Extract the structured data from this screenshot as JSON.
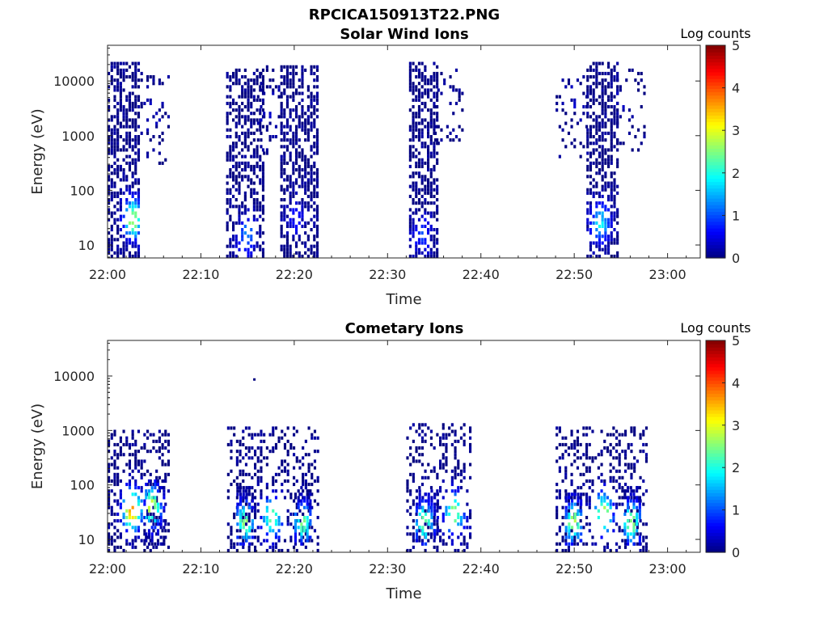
{
  "figure": {
    "title": "RPCICA150913T22.PNG"
  },
  "colormap": {
    "name": "jet"
  },
  "chart_data": [
    {
      "type": "heatmap",
      "title": "Solar Wind Ions",
      "xlabel": "Time",
      "ylabel": "Energy (eV)",
      "x_ticks": [
        "22:00",
        "22:10",
        "22:20",
        "22:30",
        "22:40",
        "22:50",
        "23:00"
      ],
      "xlim_minutes": [
        0,
        63.5
      ],
      "y_scale": "log",
      "ylim": [
        5.8,
        45000
      ],
      "y_ticks": [
        10,
        100,
        1000,
        10000
      ],
      "y_tick_labels": [
        "10",
        "100",
        "1000",
        "10000"
      ],
      "colorbar": {
        "label": "Log counts",
        "range": [
          0,
          5
        ],
        "ticks": [
          "0",
          "1",
          "2",
          "3",
          "4",
          "5"
        ]
      },
      "grid": false,
      "bursts": [
        {
          "t_start": 0.0,
          "t_end": 3.2,
          "e_min": 6,
          "e_max": 22000,
          "density": 0.55,
          "peak_t": 2.6,
          "peak_e": 30,
          "peak_level": 2.8
        },
        {
          "t_start": 3.2,
          "t_end": 6.5,
          "e_min": 250,
          "e_max": 15000,
          "density": 0.15,
          "peak_t": 4.5,
          "peak_e": 3000,
          "peak_level": 0.3
        },
        {
          "t_start": 12.7,
          "t_end": 16.6,
          "e_min": 6,
          "e_max": 18000,
          "density": 0.5,
          "peak_t": 14.8,
          "peak_e": 15,
          "peak_level": 1.3
        },
        {
          "t_start": 16.0,
          "t_end": 18.5,
          "e_min": 400,
          "e_max": 20000,
          "density": 0.2,
          "peak_t": 17.0,
          "peak_e": 3000,
          "peak_level": 0.3
        },
        {
          "t_start": 18.5,
          "t_end": 22.5,
          "e_min": 6,
          "e_max": 20000,
          "density": 0.55,
          "peak_t": 20.0,
          "peak_e": 30,
          "peak_level": 0.6
        },
        {
          "t_start": 32.3,
          "t_end": 35.3,
          "e_min": 6,
          "e_max": 22000,
          "density": 0.55,
          "peak_t": 33.6,
          "peak_e": 15,
          "peak_level": 0.9
        },
        {
          "t_start": 35.0,
          "t_end": 38.0,
          "e_min": 700,
          "e_max": 16000,
          "density": 0.18,
          "peak_t": 36.0,
          "peak_e": 5000,
          "peak_level": 0.3
        },
        {
          "t_start": 48.0,
          "t_end": 51.5,
          "e_min": 400,
          "e_max": 15000,
          "density": 0.15,
          "peak_t": 50.0,
          "peak_e": 5000,
          "peak_level": 0.3
        },
        {
          "t_start": 51.3,
          "t_end": 54.8,
          "e_min": 6,
          "e_max": 22000,
          "density": 0.55,
          "peak_t": 52.7,
          "peak_e": 25,
          "peak_level": 1.8
        },
        {
          "t_start": 54.5,
          "t_end": 57.5,
          "e_min": 500,
          "e_max": 16000,
          "density": 0.22,
          "peak_t": 55.0,
          "peak_e": 5000,
          "peak_level": 0.3
        }
      ]
    },
    {
      "type": "heatmap",
      "title": "Cometary Ions",
      "xlabel": "Time",
      "ylabel": "Energy (eV)",
      "x_ticks": [
        "22:00",
        "22:10",
        "22:20",
        "22:30",
        "22:40",
        "22:50",
        "23:00"
      ],
      "xlim_minutes": [
        0,
        63.5
      ],
      "y_scale": "log",
      "ylim": [
        5.8,
        45000
      ],
      "y_ticks": [
        10,
        100,
        1000,
        10000
      ],
      "y_tick_labels": [
        "10",
        "100",
        "1000",
        "10000"
      ],
      "colorbar": {
        "label": "Log counts",
        "range": [
          0,
          5
        ],
        "ticks": [
          "0",
          "1",
          "2",
          "3",
          "4",
          "5"
        ]
      },
      "grid": false,
      "bursts": [
        {
          "t_start": 0.0,
          "t_end": 6.5,
          "e_min": 6,
          "e_max": 1100,
          "density": 0.35,
          "peak_t": 2.5,
          "peak_e": 35,
          "peak_level": 3.8
        },
        {
          "t_start": 4.0,
          "t_end": 6.0,
          "e_min": 8,
          "e_max": 120,
          "density": 0.5,
          "peak_t": 4.6,
          "peak_e": 40,
          "peak_level": 3.0
        },
        {
          "t_start": 12.8,
          "t_end": 22.5,
          "e_min": 6,
          "e_max": 1200,
          "density": 0.3,
          "peak_t": 17.5,
          "peak_e": 25,
          "peak_level": 2.6
        },
        {
          "t_start": 13.8,
          "t_end": 15.5,
          "e_min": 8,
          "e_max": 90,
          "density": 0.55,
          "peak_t": 14.6,
          "peak_e": 20,
          "peak_level": 2.6
        },
        {
          "t_start": 20.0,
          "t_end": 21.8,
          "e_min": 8,
          "e_max": 90,
          "density": 0.55,
          "peak_t": 20.8,
          "peak_e": 20,
          "peak_level": 2.4
        },
        {
          "t_start": 32.0,
          "t_end": 38.8,
          "e_min": 6,
          "e_max": 1400,
          "density": 0.3,
          "peak_t": 37.0,
          "peak_e": 30,
          "peak_level": 2.7
        },
        {
          "t_start": 33.0,
          "t_end": 35.5,
          "e_min": 8,
          "e_max": 80,
          "density": 0.5,
          "peak_t": 33.8,
          "peak_e": 20,
          "peak_level": 2.6
        },
        {
          "t_start": 48.0,
          "t_end": 57.8,
          "e_min": 6,
          "e_max": 1200,
          "density": 0.3,
          "peak_t": 53.0,
          "peak_e": 30,
          "peak_level": 2.9
        },
        {
          "t_start": 49.0,
          "t_end": 50.8,
          "e_min": 8,
          "e_max": 90,
          "density": 0.55,
          "peak_t": 49.8,
          "peak_e": 20,
          "peak_level": 2.8
        },
        {
          "t_start": 55.3,
          "t_end": 57.2,
          "e_min": 8,
          "e_max": 90,
          "density": 0.55,
          "peak_t": 56.0,
          "peak_e": 20,
          "peak_level": 2.7
        }
      ],
      "isolated_points": [
        {
          "t": 15.6,
          "e": 8500,
          "level": 0
        }
      ]
    }
  ]
}
